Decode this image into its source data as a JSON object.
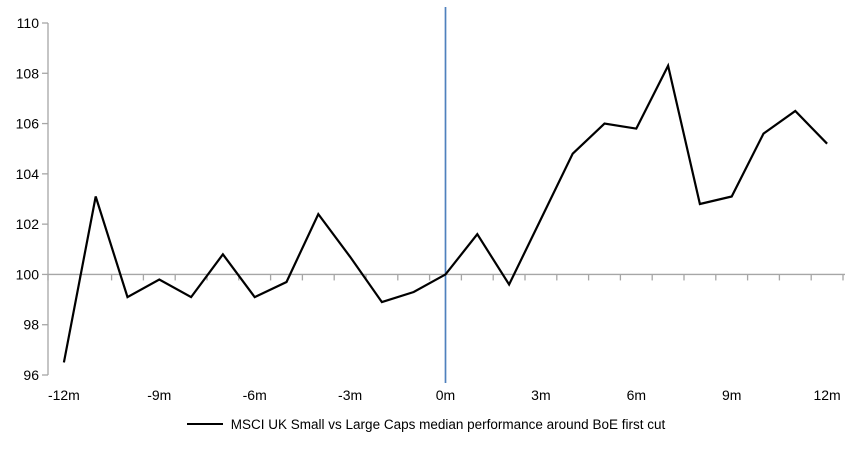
{
  "chart_data": {
    "type": "line",
    "title": "",
    "xlabel": "",
    "ylabel": "",
    "x": [
      -12,
      -11,
      -10,
      -9,
      -8,
      -7,
      -6,
      -5,
      -4,
      -3,
      -2,
      -1,
      0,
      1,
      2,
      3,
      4,
      5,
      6,
      7,
      8,
      9,
      10,
      11,
      12
    ],
    "series": [
      {
        "name": "MSCI UK Small vs Large Caps median performance around BoE first cut",
        "values": [
          96.5,
          103.1,
          99.1,
          99.8,
          99.1,
          100.8,
          99.1,
          99.7,
          102.4,
          100.7,
          98.9,
          99.3,
          100.0,
          101.6,
          99.6,
          102.2,
          104.8,
          106.0,
          105.8,
          108.3,
          102.8,
          103.1,
          105.6,
          106.5,
          105.2
        ]
      }
    ],
    "ylim": [
      96,
      110
    ],
    "y_ticks": [
      96,
      98,
      100,
      102,
      104,
      106,
      108,
      110
    ],
    "x_tick_positions": [
      -12,
      -9,
      -6,
      -3,
      0,
      3,
      6,
      9,
      12
    ],
    "x_tick_labels": [
      "-12m",
      "-9m",
      "-6m",
      "-3m",
      "0m",
      "3m",
      "6m",
      "9m",
      "12m"
    ],
    "baseline_value": 100,
    "event_line_x": 0,
    "grid": false,
    "legend_position": "bottom-center",
    "colors": {
      "series_line": "#000000",
      "event_line": "#4F81BD",
      "axis": "#A6A6A6",
      "text": "#000000"
    }
  }
}
